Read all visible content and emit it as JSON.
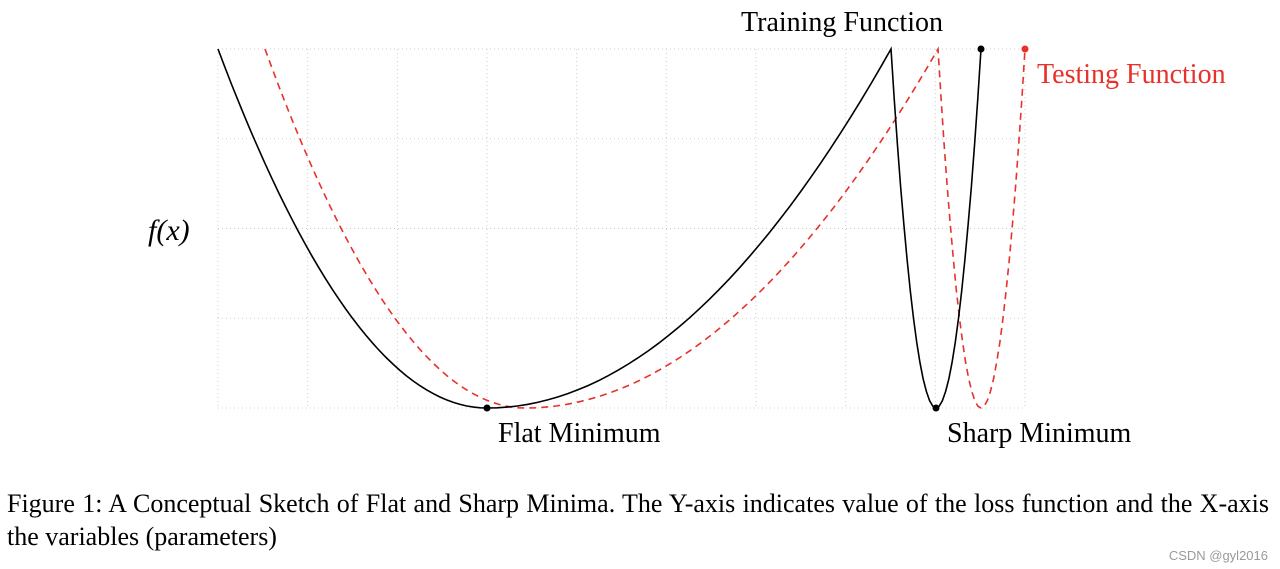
{
  "chart_data": {
    "type": "line",
    "title": "",
    "ylabel": "f(x)",
    "xlabel": "",
    "grid": true,
    "series": [
      {
        "name": "Training Function",
        "color": "#000000",
        "style": "solid"
      },
      {
        "name": "Testing Function",
        "color": "#e8312b",
        "style": "dashed"
      }
    ],
    "annotations": [
      "Flat Minimum",
      "Sharp Minimum"
    ]
  },
  "caption": {
    "text": "Figure 1: A Conceptual Sketch of Flat and Sharp Minima. The Y-axis indicates value of the loss function and the X-axis the variables (parameters)"
  },
  "watermark": "CSDN @gyl2016"
}
